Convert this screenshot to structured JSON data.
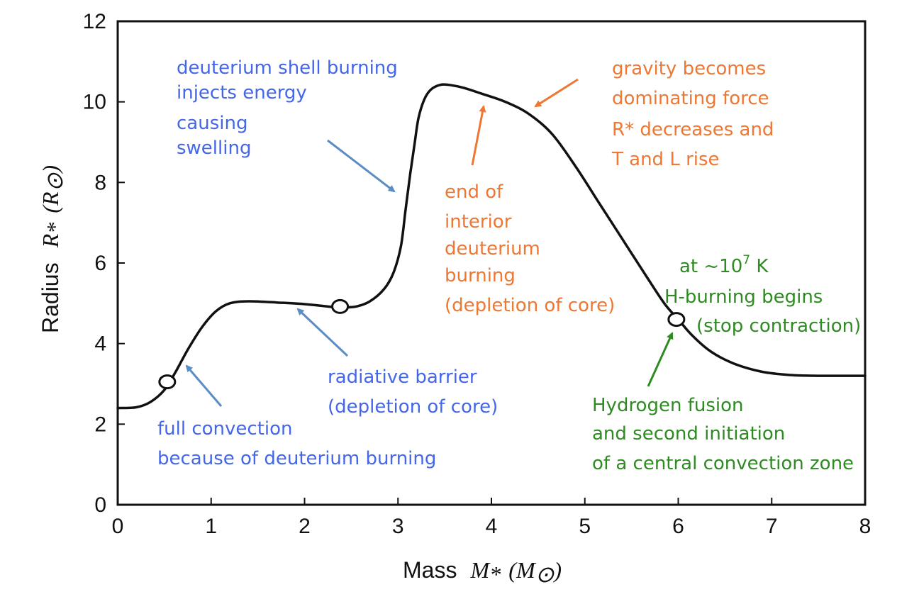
{
  "chart_data": {
    "type": "line",
    "xlabel": {
      "prefix": "Mass",
      "symbol": "M",
      "sub": "*",
      "unit": "(M",
      "unit_sub": "⊙",
      "unit_close": ")"
    },
    "ylabel": {
      "prefix": "Radius",
      "symbol": "R",
      "sub": "*",
      "unit": "(R",
      "unit_sub": "⊙",
      "unit_close": ")"
    },
    "xlim": [
      0,
      8
    ],
    "ylim": [
      0,
      12
    ],
    "x_ticks": [
      "0",
      "1",
      "2",
      "3",
      "4",
      "5",
      "6",
      "7",
      "8"
    ],
    "y_ticks": [
      "0",
      "2",
      "4",
      "6",
      "8",
      "10",
      "12"
    ],
    "grid": false,
    "series": [
      {
        "x": [
          0,
          0.2,
          0.35,
          0.5,
          0.62,
          0.75,
          0.9,
          1.05,
          1.2,
          1.4,
          1.7,
          2.0,
          2.25,
          2.4,
          2.55,
          2.7,
          2.85,
          2.95,
          3.03,
          3.08,
          3.13,
          3.18,
          3.22,
          3.28,
          3.35,
          3.45,
          3.55,
          3.7,
          3.9,
          4.15,
          4.4,
          4.65,
          4.9,
          5.15,
          5.4,
          5.65,
          5.85,
          6.0,
          6.15,
          6.35,
          6.6,
          6.9,
          7.2,
          7.5,
          7.8,
          8.0
        ],
        "y": [
          2.4,
          2.42,
          2.55,
          2.85,
          3.3,
          3.85,
          4.4,
          4.8,
          5.0,
          5.05,
          5.02,
          4.98,
          4.92,
          4.9,
          4.92,
          5.05,
          5.35,
          5.75,
          6.4,
          7.3,
          8.2,
          9.0,
          9.6,
          10.05,
          10.3,
          10.42,
          10.42,
          10.35,
          10.2,
          10.0,
          9.7,
          9.2,
          8.4,
          7.5,
          6.6,
          5.7,
          5.0,
          4.6,
          4.2,
          3.8,
          3.5,
          3.3,
          3.22,
          3.2,
          3.2,
          3.2
        ]
      }
    ],
    "markers": [
      {
        "x": 0.53,
        "y": 3.05
      },
      {
        "x": 2.38,
        "y": 4.92
      },
      {
        "x": 5.98,
        "y": 4.6
      }
    ],
    "annotations": [
      {
        "id": "deuterium-shell",
        "color": "blue",
        "lines": [
          "deuterium shell burning",
          "injects energy",
          "causing",
          "swelling"
        ]
      },
      {
        "id": "radiative-barrier",
        "color": "blue",
        "lines": [
          "radiative barrier",
          "(depletion of core)"
        ]
      },
      {
        "id": "full-convection",
        "color": "blue",
        "lines": [
          "full convection",
          "because of deuterium burning"
        ]
      },
      {
        "id": "end-interior",
        "color": "orange",
        "lines": [
          "end of",
          "interior",
          "deuterium",
          "burning",
          "(depletion of core)"
        ]
      },
      {
        "id": "gravity",
        "color": "orange",
        "lines": [
          "gravity becomes",
          "dominating force",
          "R* decreases and",
          "T and L rise"
        ]
      },
      {
        "id": "h-burning",
        "color": "green",
        "lines": [
          "at ~10",
          "H-burning begins",
          "(stop contraction)"
        ],
        "exp": "7",
        "exp_tail": " K"
      },
      {
        "id": "hydrogen-fusion",
        "color": "green",
        "lines": [
          "Hydrogen fusion",
          "and second initiation",
          "of a central convection zone"
        ]
      }
    ],
    "colors": {
      "blue": "#4466e8",
      "orange": "#ee7733",
      "green": "#2e8b22",
      "arrow_blue": "#5b8cc4",
      "arrow_orange": "#ee7733",
      "arrow_green": "#2e8b22"
    }
  }
}
